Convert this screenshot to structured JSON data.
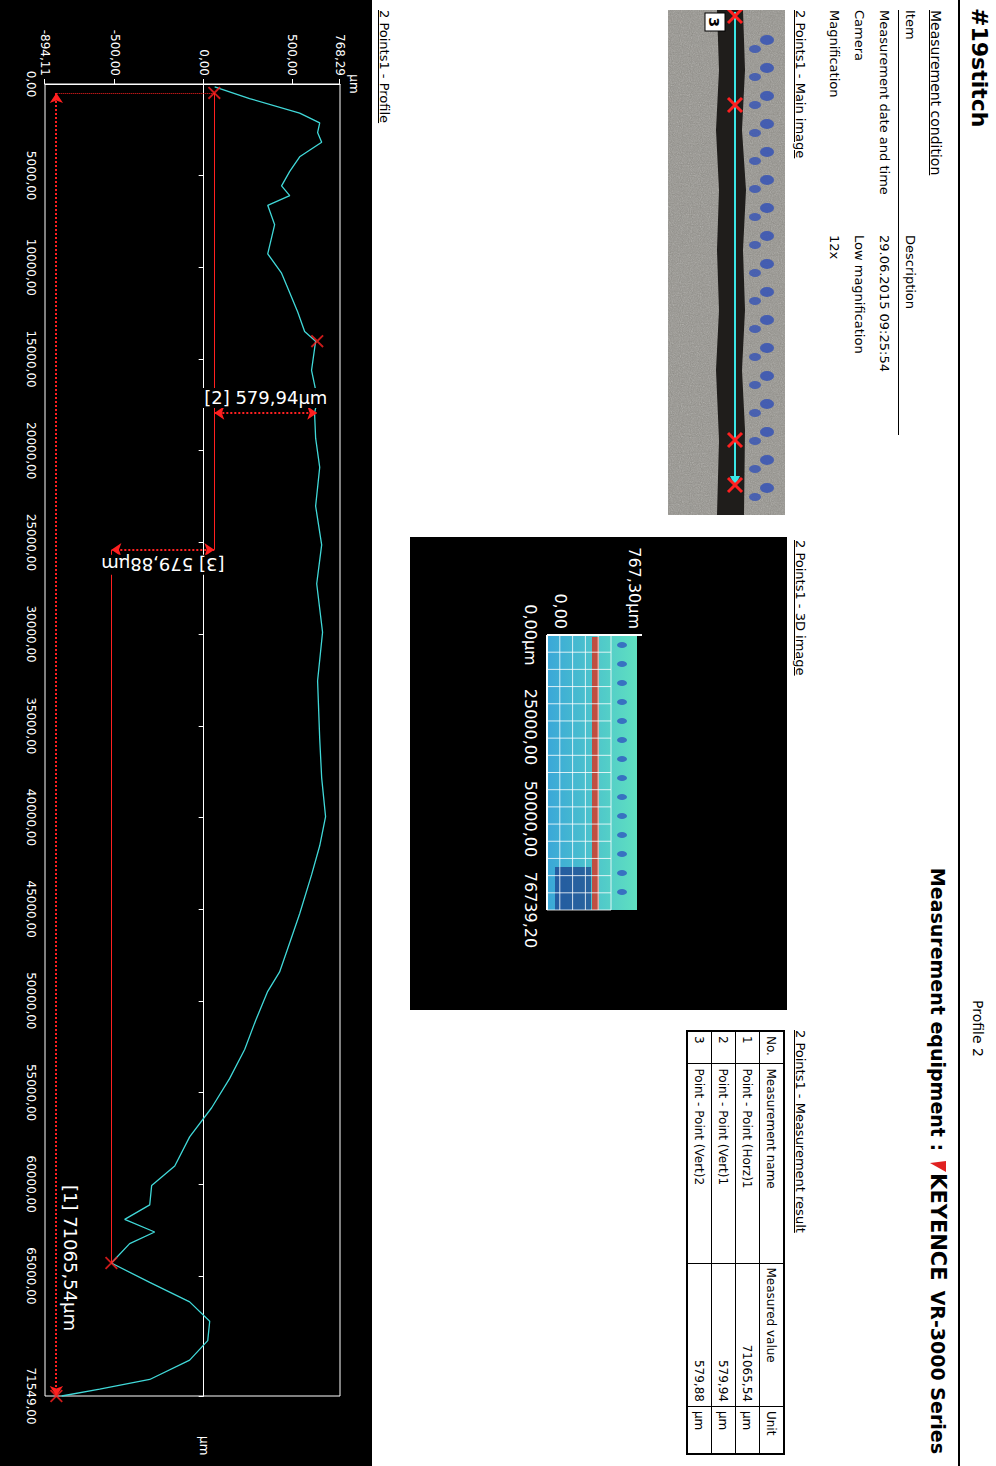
{
  "header": {
    "title": "#19stitch",
    "page": "Profile 2",
    "equipment_label": "Measurement equipment :",
    "brand": "KEYENCE",
    "model": "VR-3000 Series"
  },
  "condition": {
    "title": "Measurement condition",
    "columns": [
      "Item",
      "Description"
    ],
    "rows": [
      [
        "Measurement date and time",
        "29.06.2015 09:25:54"
      ],
      [
        "Camera",
        "Low magnification"
      ],
      [
        "Magnification",
        "12x"
      ]
    ]
  },
  "main_image": {
    "title": "2 Points1 - Main image",
    "label": "3"
  },
  "image_3d": {
    "title": "2 Points1 - 3D image",
    "z_labels": [
      "767,30µm",
      "0,00"
    ],
    "x_labels": [
      "0,00µm",
      "25000,00",
      "50000,00",
      "76739,20"
    ]
  },
  "result": {
    "title": "2 Points1 - Measurement result",
    "columns": [
      "No.",
      "Measurement name",
      "Measured value",
      "Unit"
    ],
    "rows": [
      [
        "1",
        "Point - Point (Horz)1",
        "71065,54",
        "µm"
      ],
      [
        "2",
        "Point - Point (Vert)1",
        "579,94",
        "µm"
      ],
      [
        "3",
        "Point - Point (Vert)2",
        "579,88",
        "µm"
      ]
    ]
  },
  "chart_data": {
    "type": "line",
    "title": "2 Points1 - Profile",
    "xlabel": "µm",
    "ylabel": "µm",
    "color": "#40d8d8",
    "grid": false,
    "x": [
      159,
      794,
      1588,
      2117,
      2646,
      3175,
      3969,
      4763,
      5557,
      6086,
      6615,
      7673,
      9261,
      10319,
      11378,
      12436,
      13495,
      14024,
      15611,
      17199,
      17940,
      19316,
      20903,
      23020,
      25137,
      27254,
      29900,
      32546,
      35721,
      37838,
      39955,
      41542,
      43130,
      45247,
      46834,
      48422,
      49480,
      51068,
      52655,
      54243,
      55830,
      57418,
      59006,
      60064,
      61123,
      61917,
      62605,
      63240,
      64298,
      65356,
      66415,
      67473,
      68531,
      69590,
      70648,
      71177,
      71549
    ],
    "values": [
      62,
      259,
      541,
      654,
      642,
      665,
      541,
      485,
      439,
      485,
      361,
      400,
      361,
      439,
      485,
      530,
      569,
      631,
      608,
      642,
      625,
      631,
      654,
      631,
      665,
      637,
      670,
      642,
      654,
      665,
      687,
      654,
      608,
      541,
      485,
      428,
      361,
      293,
      231,
      146,
      45,
      -79,
      -163,
      -293,
      -304,
      -445,
      -276,
      -417,
      -520,
      -304,
      -79,
      34,
      23,
      -79,
      -304,
      -586,
      -800
    ],
    "xlim": [
      0,
      71549
    ],
    "xticks": [
      {
        "value": 0,
        "label": "0,00"
      },
      {
        "value": 5000,
        "label": "5000,00"
      },
      {
        "value": 10000,
        "label": "10000,00"
      },
      {
        "value": 15000,
        "label": "15000,00"
      },
      {
        "value": 20000,
        "label": "20000,00"
      },
      {
        "value": 25000,
        "label": "25000,00"
      },
      {
        "value": 30000,
        "label": "30000,00"
      },
      {
        "value": 35000,
        "label": "35000,00"
      },
      {
        "value": 40000,
        "label": "40000,00"
      },
      {
        "value": 45000,
        "label": "45000,00"
      },
      {
        "value": 50000,
        "label": "50000,00"
      },
      {
        "value": 55000,
        "label": "55000,00"
      },
      {
        "value": 60000,
        "label": "60000,00"
      },
      {
        "value": 65000,
        "label": "65000,00"
      },
      {
        "value": 71549,
        "label": "71549,00"
      }
    ],
    "ylim": [
      -894.11,
      768.29
    ],
    "yticks": [
      {
        "value": -894.11,
        "label": "-894,11"
      },
      {
        "value": -500,
        "label": "-500,00"
      },
      {
        "value": 0,
        "label": "0,00"
      },
      {
        "value": 500,
        "label": "500,00"
      },
      {
        "value": 768.29,
        "label": "768,29"
      }
    ],
    "markers": {
      "x": [
        484,
        14024,
        64298,
        71549
      ],
      "y": [
        60,
        640,
        -520,
        -830
      ],
      "color": "#ff2020",
      "marker": "x"
    },
    "annotations": [
      {
        "text": "[1] 71065,54µm",
        "x": [
          484,
          71549
        ],
        "y": [
          -830,
          -830
        ],
        "line_style": "dotted"
      },
      {
        "text": "[2] 579,94µm",
        "x": [
          17940,
          17940
        ],
        "y": [
          60,
          640
        ],
        "line_style": "dotted"
      },
      {
        "text": "[3] 579,88µm",
        "x": [
          25400,
          25400
        ],
        "y": [
          60,
          -520
        ],
        "line_style": "dotted"
      }
    ],
    "reference_lines": [
      {
        "x": [
          484,
          25400
        ],
        "y": [
          60,
          60
        ],
        "line_style": "solid"
      },
      {
        "x": [
          25400,
          64298
        ],
        "y": [
          -520,
          -520
        ],
        "line_style": "solid"
      },
      {
        "x": [
          484,
          484
        ],
        "y": [
          60,
          -830
        ],
        "line_style": "dotted"
      }
    ]
  }
}
